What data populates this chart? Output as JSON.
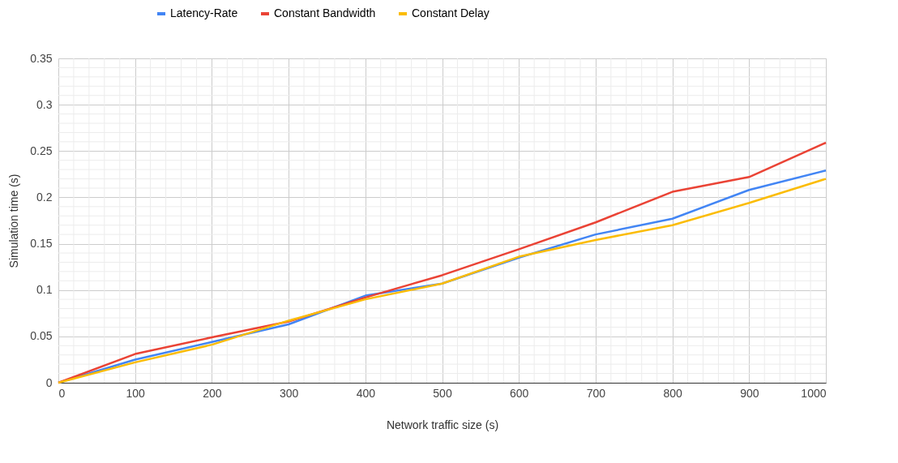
{
  "chart_data": {
    "type": "line",
    "xlabel": "Network traffic size (s)",
    "ylabel": "Simulation time (s)",
    "x": [
      0,
      100,
      200,
      300,
      400,
      500,
      600,
      700,
      800,
      900,
      1000
    ],
    "series": [
      {
        "name": "Latency-Rate",
        "color": "#4285f4",
        "values": [
          0,
          0.025,
          0.044,
          0.063,
          0.094,
          0.107,
          0.135,
          0.16,
          0.177,
          0.208,
          0.229
        ]
      },
      {
        "name": "Constant Bandwidth",
        "color": "#ea4335",
        "values": [
          0,
          0.031,
          0.049,
          0.066,
          0.092,
          0.116,
          0.144,
          0.173,
          0.206,
          0.222,
          0.259
        ]
      },
      {
        "name": "Constant Delay",
        "color": "#fbbc04",
        "values": [
          0,
          0.022,
          0.041,
          0.067,
          0.09,
          0.107,
          0.136,
          0.154,
          0.17,
          0.194,
          0.22
        ]
      }
    ],
    "xlim": [
      0,
      1000
    ],
    "xticks": [
      0,
      100,
      200,
      300,
      400,
      500,
      600,
      700,
      800,
      900,
      1000
    ],
    "ylim": [
      0,
      0.35
    ],
    "yticks": [
      0,
      0.05,
      0.1,
      0.15,
      0.2,
      0.25,
      0.3,
      0.35
    ],
    "grid": true,
    "legend": "top",
    "marker": "none",
    "line_style": "solid"
  }
}
